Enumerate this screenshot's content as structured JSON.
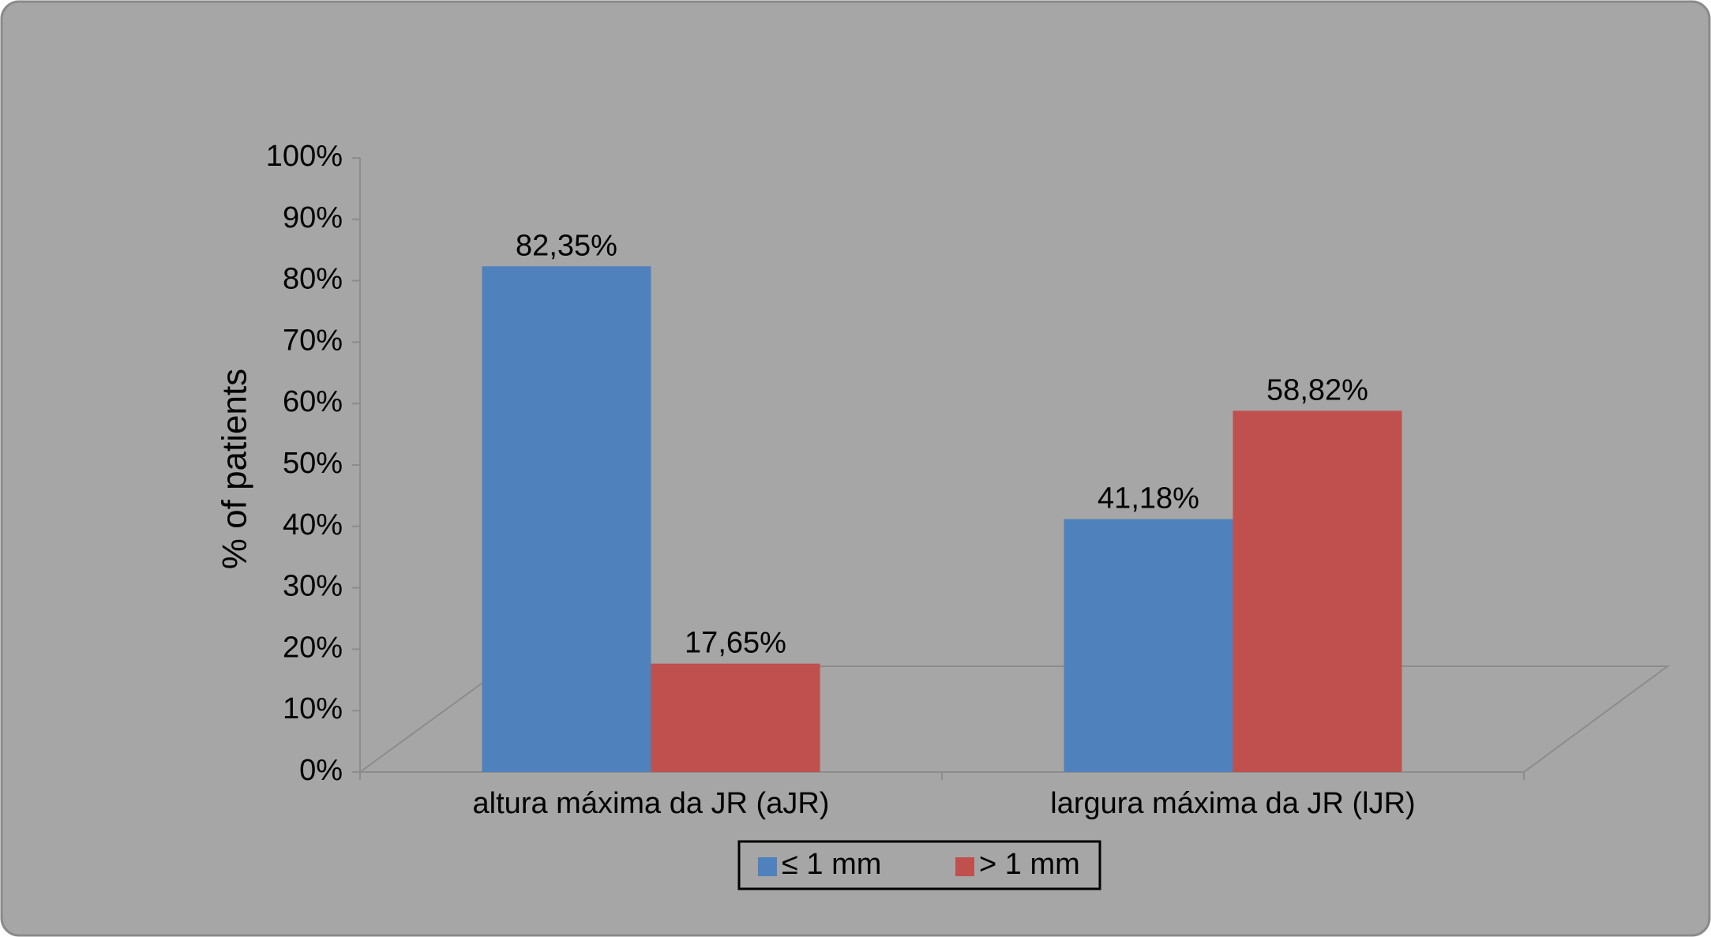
{
  "chart_data": {
    "type": "bar",
    "y_label": "% of patients",
    "categories": [
      "altura máxima da JR (aJR)",
      "largura máxima da JR (lJR)"
    ],
    "series": [
      {
        "name": "≤ 1 mm",
        "color": "#4f81bd",
        "values": [
          82.35,
          41.18
        ],
        "value_labels": [
          "82,35%",
          "41,18%"
        ]
      },
      {
        "name": "> 1 mm",
        "color": "#c0504d",
        "values": [
          17.65,
          58.82
        ],
        "value_labels": [
          "17,65%",
          "58,82%"
        ]
      }
    ],
    "ylim": [
      0,
      100
    ],
    "yticks": [
      {
        "value": 0,
        "label": "0%"
      },
      {
        "value": 10,
        "label": "10%"
      },
      {
        "value": 20,
        "label": "20%"
      },
      {
        "value": 30,
        "label": "30%"
      },
      {
        "value": 40,
        "label": "40%"
      },
      {
        "value": 50,
        "label": "50%"
      },
      {
        "value": 60,
        "label": "60%"
      },
      {
        "value": 70,
        "label": "70%"
      },
      {
        "value": 80,
        "label": "80%"
      },
      {
        "value": 90,
        "label": "90%"
      },
      {
        "value": 100,
        "label": "100%"
      }
    ]
  }
}
